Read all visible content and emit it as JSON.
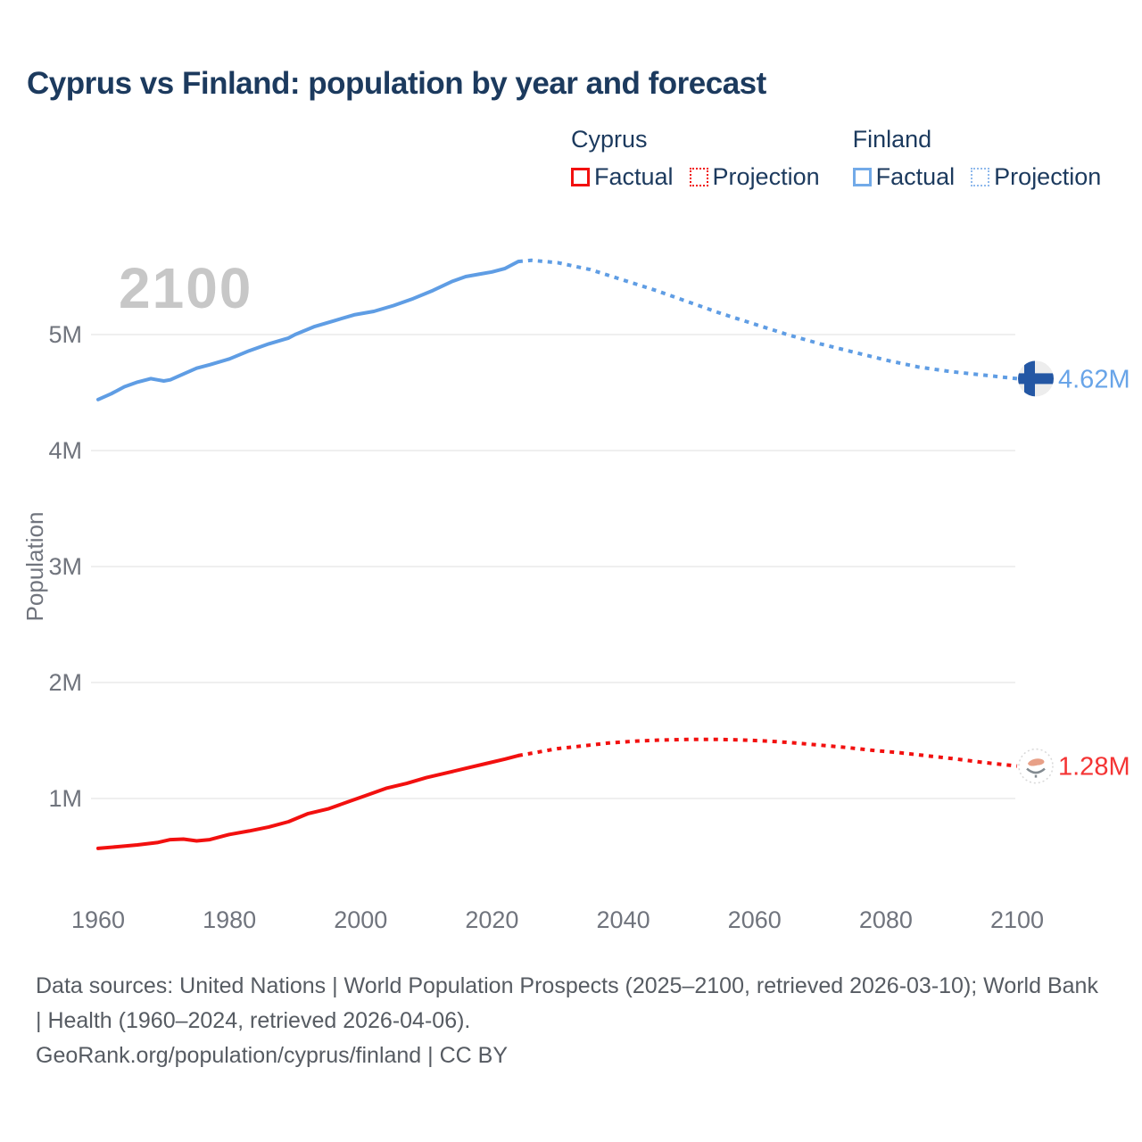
{
  "title": "Cyprus vs Finland: population by year and forecast",
  "watermark": "2100",
  "legend": {
    "groups": [
      {
        "name": "Cyprus",
        "color": "#f2100f",
        "items": [
          {
            "label": "Factual",
            "style": "solid"
          },
          {
            "label": "Projection",
            "style": "dotted"
          }
        ]
      },
      {
        "name": "Finland",
        "color": "#72aae8",
        "items": [
          {
            "label": "Factual",
            "style": "solid"
          },
          {
            "label": "Projection",
            "style": "dotted"
          }
        ]
      }
    ]
  },
  "chart_data": {
    "type": "line",
    "title": "Cyprus vs Finland: population by year and forecast",
    "xlabel": "",
    "ylabel": "Population",
    "x_ticks": [
      1960,
      1980,
      2000,
      2020,
      2040,
      2060,
      2080,
      2100
    ],
    "y_ticks": [
      {
        "label": "5M",
        "millions": 5
      },
      {
        "label": "4M",
        "millions": 4
      },
      {
        "label": "3M",
        "millions": 3
      },
      {
        "label": "2M",
        "millions": 2
      },
      {
        "label": "1M",
        "millions": 1
      }
    ],
    "x_range_years": [
      1960,
      2100
    ],
    "grid": "horizontal",
    "legend_position": "top-right",
    "series": [
      {
        "name": "Finland Factual",
        "country": "Finland",
        "phase": "factual",
        "style": "solid",
        "color": "#5f9de4",
        "points": [
          [
            1960,
            4.44
          ],
          [
            1962,
            4.49
          ],
          [
            1964,
            4.55
          ],
          [
            1966,
            4.59
          ],
          [
            1968,
            4.62
          ],
          [
            1969,
            4.61
          ],
          [
            1970,
            4.6
          ],
          [
            1971,
            4.61
          ],
          [
            1973,
            4.66
          ],
          [
            1975,
            4.71
          ],
          [
            1977,
            4.74
          ],
          [
            1980,
            4.79
          ],
          [
            1983,
            4.86
          ],
          [
            1986,
            4.92
          ],
          [
            1989,
            4.97
          ],
          [
            1990,
            5.0
          ],
          [
            1993,
            5.07
          ],
          [
            1996,
            5.12
          ],
          [
            1999,
            5.17
          ],
          [
            2002,
            5.2
          ],
          [
            2005,
            5.25
          ],
          [
            2008,
            5.31
          ],
          [
            2011,
            5.38
          ],
          [
            2014,
            5.46
          ],
          [
            2016,
            5.5
          ],
          [
            2018,
            5.52
          ],
          [
            2020,
            5.54
          ],
          [
            2022,
            5.57
          ],
          [
            2024,
            5.63
          ]
        ]
      },
      {
        "name": "Finland Projection",
        "country": "Finland",
        "phase": "projection",
        "style": "dotted",
        "color": "#5f9de4",
        "points": [
          [
            2024,
            5.63
          ],
          [
            2026,
            5.64
          ],
          [
            2030,
            5.62
          ],
          [
            2035,
            5.56
          ],
          [
            2040,
            5.47
          ],
          [
            2045,
            5.38
          ],
          [
            2050,
            5.28
          ],
          [
            2055,
            5.18
          ],
          [
            2060,
            5.09
          ],
          [
            2065,
            5.0
          ],
          [
            2070,
            4.92
          ],
          [
            2075,
            4.85
          ],
          [
            2080,
            4.78
          ],
          [
            2085,
            4.72
          ],
          [
            2090,
            4.68
          ],
          [
            2095,
            4.65
          ],
          [
            2100,
            4.62
          ]
        ]
      },
      {
        "name": "Cyprus Factual",
        "country": "Cyprus",
        "phase": "factual",
        "style": "solid",
        "color": "#f2100f",
        "points": [
          [
            1960,
            0.57
          ],
          [
            1963,
            0.585
          ],
          [
            1966,
            0.6
          ],
          [
            1969,
            0.62
          ],
          [
            1971,
            0.645
          ],
          [
            1973,
            0.65
          ],
          [
            1975,
            0.635
          ],
          [
            1977,
            0.645
          ],
          [
            1980,
            0.69
          ],
          [
            1983,
            0.72
          ],
          [
            1986,
            0.755
          ],
          [
            1989,
            0.8
          ],
          [
            1992,
            0.87
          ],
          [
            1995,
            0.91
          ],
          [
            1998,
            0.97
          ],
          [
            2001,
            1.03
          ],
          [
            2004,
            1.09
          ],
          [
            2007,
            1.13
          ],
          [
            2010,
            1.18
          ],
          [
            2013,
            1.22
          ],
          [
            2016,
            1.26
          ],
          [
            2019,
            1.3
          ],
          [
            2022,
            1.34
          ],
          [
            2024,
            1.37
          ]
        ]
      },
      {
        "name": "Cyprus Projection",
        "country": "Cyprus",
        "phase": "projection",
        "style": "dotted",
        "color": "#f2100f",
        "points": [
          [
            2024,
            1.37
          ],
          [
            2027,
            1.4
          ],
          [
            2030,
            1.43
          ],
          [
            2034,
            1.455
          ],
          [
            2038,
            1.48
          ],
          [
            2042,
            1.495
          ],
          [
            2046,
            1.505
          ],
          [
            2050,
            1.51
          ],
          [
            2054,
            1.51
          ],
          [
            2058,
            1.505
          ],
          [
            2062,
            1.495
          ],
          [
            2066,
            1.48
          ],
          [
            2070,
            1.46
          ],
          [
            2074,
            1.44
          ],
          [
            2078,
            1.415
          ],
          [
            2082,
            1.395
          ],
          [
            2086,
            1.37
          ],
          [
            2090,
            1.345
          ],
          [
            2095,
            1.31
          ],
          [
            2100,
            1.28
          ]
        ]
      }
    ],
    "end_labels": [
      {
        "series": "Finland Projection",
        "text": "4.62M",
        "value_millions": 4.62,
        "color": "#68a4e8",
        "flag": "finland-flag-icon"
      },
      {
        "series": "Cyprus Projection",
        "text": "1.28M",
        "value_millions": 1.28,
        "color": "#f43434",
        "flag": "cyprus-flag-icon"
      }
    ]
  },
  "colors": {
    "title_text": "#1c3a5e",
    "axis_text": "#70747d",
    "gridline": "#efefef",
    "watermark": "#c7c7c7",
    "finland_line": "#5f9de4",
    "cyprus_line": "#f2100f",
    "finland_flag_cross": "#2457a4",
    "footer_text": "#565b62"
  },
  "footer": {
    "sources": "Data sources: United Nations | World Population Prospects (2025–2100, retrieved 2026-03-10); World Bank | Health (1960–2024, retrieved 2026-04-06).",
    "attribution": "GeoRank.org/population/cyprus/finland | CC BY"
  }
}
